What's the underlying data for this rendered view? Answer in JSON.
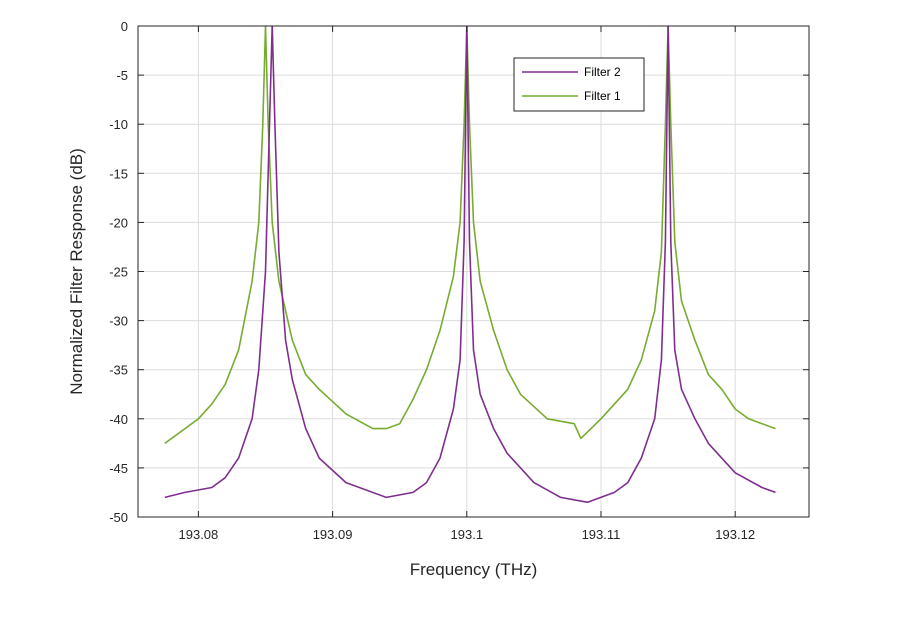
{
  "chart_data": {
    "type": "line",
    "title": "",
    "xlabel": "Frequency (THz)",
    "ylabel": "Normalized Filter Response (dB)",
    "xlim": [
      193.0755,
      193.1255
    ],
    "ylim": [
      -50,
      0
    ],
    "x_ticks": [
      193.08,
      193.09,
      193.1,
      193.11,
      193.12
    ],
    "x_tick_labels": [
      "193.08",
      "193.09",
      "193.1",
      "193.11",
      "193.12"
    ],
    "y_ticks": [
      0,
      -5,
      -10,
      -15,
      -20,
      -25,
      -30,
      -35,
      -40,
      -45,
      -50
    ],
    "y_tick_labels": [
      "0",
      "-5",
      "-10",
      "-15",
      "-20",
      "-25",
      "-30",
      "-35",
      "-40",
      "-45",
      "-50"
    ],
    "grid": true,
    "legend_position": "top-right",
    "series": [
      {
        "name": "Filter 2",
        "color": "#7e2f8e",
        "x": [
          193.0775,
          193.079,
          193.081,
          193.082,
          193.083,
          193.084,
          193.0845,
          193.085,
          193.0853,
          193.0855,
          193.0857,
          193.086,
          193.0865,
          193.087,
          193.088,
          193.089,
          193.091,
          193.094,
          193.096,
          193.097,
          193.098,
          193.099,
          193.0995,
          193.0998,
          193.1,
          193.1002,
          193.1005,
          193.101,
          193.102,
          193.103,
          193.105,
          193.107,
          193.109,
          193.111,
          193.112,
          193.113,
          193.114,
          193.1145,
          193.1148,
          193.115,
          193.1152,
          193.1155,
          193.116,
          193.117,
          193.118,
          193.12,
          193.122,
          193.123
        ],
        "values": [
          -48,
          -47.5,
          -47,
          -46,
          -44,
          -40,
          -35,
          -25,
          -10,
          0,
          -10,
          -23,
          -32,
          -36,
          -41,
          -44,
          -46.5,
          -48,
          -47.5,
          -46.5,
          -44,
          -39,
          -34,
          -22,
          0,
          -22,
          -33,
          -37.5,
          -41,
          -43.5,
          -46.5,
          -48,
          -48.5,
          -47.5,
          -46.5,
          -44,
          -40,
          -34,
          -22,
          0,
          -22,
          -33,
          -37,
          -40,
          -42.5,
          -45.5,
          -47,
          -47.5
        ]
      },
      {
        "name": "Filter 1",
        "color": "#77ac30",
        "x": [
          193.0775,
          193.079,
          193.08,
          193.081,
          193.082,
          193.083,
          193.084,
          193.0845,
          193.0848,
          193.085,
          193.0852,
          193.0855,
          193.086,
          193.087,
          193.088,
          193.089,
          193.091,
          193.093,
          193.094,
          193.095,
          193.096,
          193.097,
          193.098,
          193.099,
          193.0995,
          193.0998,
          193.1,
          193.1002,
          193.1005,
          193.101,
          193.102,
          193.103,
          193.104,
          193.106,
          193.108,
          193.1085,
          193.11,
          193.111,
          193.112,
          193.113,
          193.114,
          193.1145,
          193.1148,
          193.115,
          193.1152,
          193.1155,
          193.116,
          193.117,
          193.118,
          193.119,
          193.12,
          193.121,
          193.122,
          193.123
        ],
        "values": [
          -42.5,
          -41,
          -40,
          -38.5,
          -36.5,
          -33,
          -26,
          -20,
          -10,
          0,
          -10,
          -20,
          -26,
          -32,
          -35.5,
          -37,
          -39.5,
          -41,
          -41,
          -40.5,
          -38,
          -35,
          -31,
          -25.5,
          -20,
          -10,
          0,
          -10,
          -20,
          -26,
          -31,
          -35,
          -37.5,
          -40,
          -40.5,
          -42,
          -40,
          -38.5,
          -37,
          -34,
          -29,
          -23,
          -10,
          0,
          -10,
          -22,
          -28,
          -32,
          -35.5,
          -37,
          -39,
          -40,
          -40.5,
          -41
        ]
      }
    ]
  }
}
